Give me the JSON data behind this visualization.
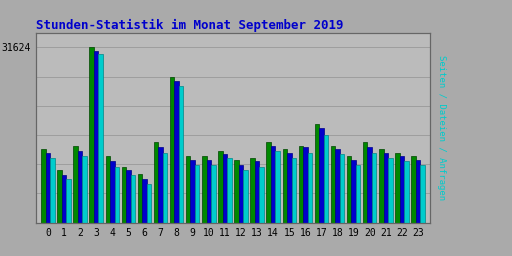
{
  "title": "Stunden-Statistik im Monat September 2019",
  "max_label": "31624",
  "hours": [
    0,
    1,
    2,
    3,
    4,
    5,
    6,
    7,
    8,
    9,
    10,
    11,
    12,
    13,
    14,
    15,
    16,
    17,
    18,
    19,
    20,
    21,
    22,
    23
  ],
  "seiten": [
    0.42,
    0.3,
    0.44,
    1.0,
    0.38,
    0.32,
    0.28,
    0.46,
    0.83,
    0.38,
    0.38,
    0.41,
    0.36,
    0.37,
    0.46,
    0.42,
    0.44,
    0.56,
    0.44,
    0.38,
    0.46,
    0.42,
    0.4,
    0.38
  ],
  "dateien": [
    0.4,
    0.27,
    0.41,
    0.98,
    0.35,
    0.3,
    0.25,
    0.43,
    0.81,
    0.36,
    0.36,
    0.39,
    0.33,
    0.35,
    0.44,
    0.4,
    0.43,
    0.54,
    0.42,
    0.36,
    0.43,
    0.4,
    0.38,
    0.36
  ],
  "anfragen": [
    0.37,
    0.25,
    0.38,
    0.96,
    0.32,
    0.27,
    0.22,
    0.4,
    0.78,
    0.33,
    0.33,
    0.37,
    0.3,
    0.32,
    0.41,
    0.37,
    0.4,
    0.5,
    0.39,
    0.33,
    0.4,
    0.37,
    0.35,
    0.33
  ],
  "color_seiten": "#008800",
  "color_dateien": "#0000cc",
  "color_anfragen": "#00cccc",
  "color_seiten_edge": "#004400",
  "color_dateien_edge": "#000088",
  "color_anfragen_edge": "#008888",
  "bg_color": "#aaaaaa",
  "plot_bg": "#bbbbbb",
  "title_color": "#0000cc",
  "bar_width": 0.28,
  "ylim": [
    0,
    1.08
  ],
  "grid_color": "#999999"
}
